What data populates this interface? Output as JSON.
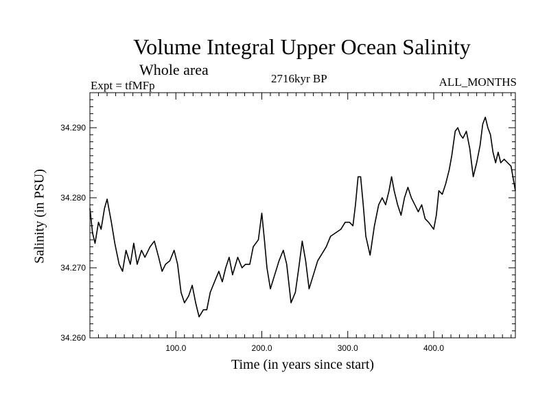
{
  "chart_data": {
    "type": "line",
    "title": "Volume Integral Upper Ocean Salinity",
    "subtitle": "Whole area",
    "experiment": "Expt = tfMFp",
    "period": "2716kyr BP",
    "months": "ALL_MONTHS",
    "xlabel": "Time (in years since start)",
    "ylabel": "Salinity (in PSU)",
    "xlim": [
      0,
      495
    ],
    "ylim": [
      34.26,
      34.295
    ],
    "grid": false,
    "x_ticks": [
      100,
      200,
      300,
      400
    ],
    "x_tick_labels": [
      "100.0",
      "200.0",
      "300.0",
      "400.0"
    ],
    "y_ticks": [
      34.26,
      34.27,
      34.28,
      34.29
    ],
    "y_tick_labels": [
      "34.260",
      "34.270",
      "34.280",
      "34.290"
    ],
    "series": [
      {
        "name": "Salinity",
        "x": [
          0,
          3,
          6,
          10,
          13,
          17,
          20,
          25,
          29,
          34,
          38,
          42,
          47,
          51,
          55,
          60,
          64,
          70,
          75,
          80,
          84,
          88,
          93,
          98,
          102,
          106,
          110,
          115,
          119,
          123,
          127,
          132,
          136,
          140,
          145,
          150,
          154,
          158,
          162,
          166,
          172,
          177,
          181,
          186,
          190,
          196,
          200,
          203,
          206,
          210,
          215,
          220,
          225,
          229,
          234,
          239,
          243,
          247,
          251,
          255,
          260,
          265,
          270,
          275,
          280,
          286,
          292,
          297,
          302,
          306,
          309,
          312,
          315,
          318,
          321,
          326,
          331,
          336,
          340,
          344,
          348,
          351,
          354,
          358,
          362,
          366,
          370,
          374,
          378,
          382,
          386,
          390,
          394,
          397,
          400,
          403,
          406,
          410,
          414,
          418,
          421,
          425,
          428,
          431,
          434,
          438,
          442,
          446,
          450,
          454,
          457,
          460,
          463,
          466,
          469,
          472,
          475,
          478,
          482,
          486,
          490,
          495
        ],
        "values": [
          34.2785,
          34.275,
          34.2735,
          34.2765,
          34.2755,
          34.2785,
          34.2798,
          34.2765,
          34.2735,
          34.2705,
          34.2695,
          34.2725,
          34.2705,
          34.2735,
          34.2705,
          34.2725,
          34.2715,
          34.273,
          34.2738,
          34.2715,
          34.2695,
          34.2705,
          34.271,
          34.2725,
          34.2705,
          34.2665,
          34.265,
          34.266,
          34.2675,
          34.265,
          34.263,
          34.264,
          34.264,
          34.2665,
          34.268,
          34.2695,
          34.268,
          34.27,
          34.2715,
          34.269,
          34.2715,
          34.27,
          34.2705,
          34.2705,
          34.273,
          34.274,
          34.2778,
          34.274,
          34.27,
          34.267,
          34.269,
          34.271,
          34.2725,
          34.2705,
          34.265,
          34.2665,
          34.27,
          34.2738,
          34.271,
          34.267,
          34.269,
          34.271,
          34.272,
          34.273,
          34.2745,
          34.275,
          34.2755,
          34.2765,
          34.2765,
          34.276,
          34.279,
          34.283,
          34.283,
          34.279,
          34.2745,
          34.2718,
          34.276,
          34.279,
          34.28,
          34.279,
          34.281,
          34.283,
          34.281,
          34.279,
          34.2775,
          34.28,
          34.2815,
          34.28,
          34.279,
          34.278,
          34.279,
          34.277,
          34.2765,
          34.276,
          34.2755,
          34.2775,
          34.281,
          34.2805,
          34.282,
          34.284,
          34.286,
          34.2895,
          34.29,
          34.289,
          34.2885,
          34.2895,
          34.287,
          34.283,
          34.285,
          34.2875,
          34.2905,
          34.2915,
          34.29,
          34.289,
          34.2865,
          34.285,
          34.2865,
          34.285,
          34.2855,
          34.285,
          34.2845,
          34.281
        ]
      }
    ]
  }
}
